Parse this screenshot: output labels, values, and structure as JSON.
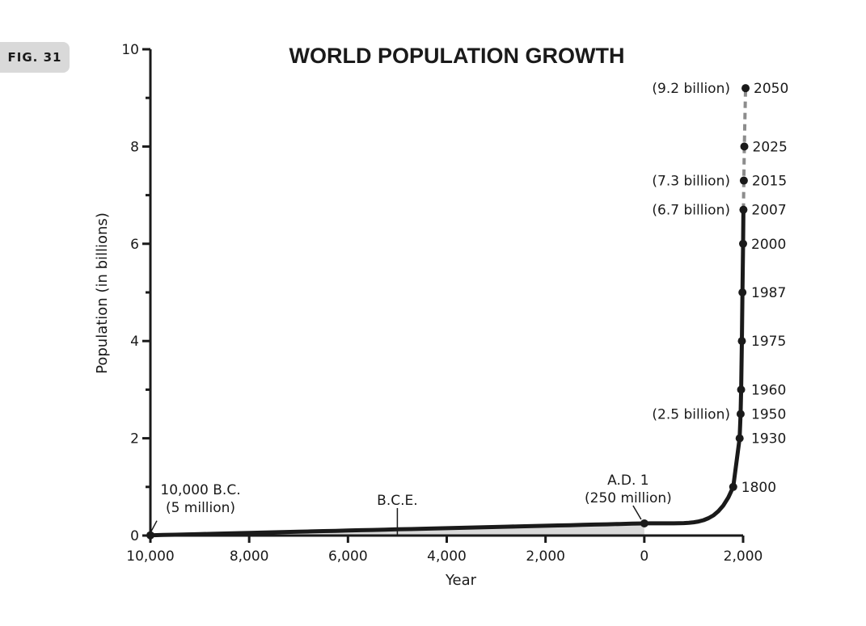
{
  "figure_label": "FIG. 31",
  "chart_data": {
    "type": "line",
    "title": "WORLD POPULATION GROWTH",
    "xlabel": "Year",
    "ylabel": "Population (in billions)",
    "xlim": [
      -10000,
      2000
    ],
    "ylim": [
      0,
      10
    ],
    "x_ticks": [
      -10000,
      -8000,
      -6000,
      -4000,
      -2000,
      0,
      2000
    ],
    "x_tick_labels": [
      "10,000",
      "8,000",
      "6,000",
      "4,000",
      "2,000",
      "0",
      "2,000"
    ],
    "y_ticks": [
      0,
      2,
      4,
      6,
      8,
      10
    ],
    "y_tick_labels": [
      "0",
      "2",
      "4",
      "6",
      "8",
      "10"
    ],
    "y_minor_ticks": [
      1,
      3,
      5,
      7,
      9
    ],
    "grid": false,
    "series": [
      {
        "style": "solid",
        "points": [
          {
            "x": -10000,
            "y": 0.005
          },
          {
            "x": 1,
            "y": 0.25
          },
          {
            "x": 1800,
            "y": 1.0
          },
          {
            "x": 1930,
            "y": 2.0
          },
          {
            "x": 1950,
            "y": 2.5
          },
          {
            "x": 1960,
            "y": 3.0
          },
          {
            "x": 1975,
            "y": 4.0
          },
          {
            "x": 1987,
            "y": 5.0
          },
          {
            "x": 2000,
            "y": 6.0
          },
          {
            "x": 2007,
            "y": 6.7
          }
        ]
      },
      {
        "style": "dashed",
        "points": [
          {
            "x": 2007,
            "y": 6.7
          },
          {
            "x": 2015,
            "y": 7.3
          },
          {
            "x": 2025,
            "y": 8.0
          },
          {
            "x": 2050,
            "y": 9.2
          }
        ]
      }
    ],
    "year_labels": [
      {
        "x": 1800,
        "y": 1.0,
        "label": "1800"
      },
      {
        "x": 1930,
        "y": 2.0,
        "label": "1930"
      },
      {
        "x": 1950,
        "y": 2.5,
        "label": "1950"
      },
      {
        "x": 1960,
        "y": 3.0,
        "label": "1960"
      },
      {
        "x": 1975,
        "y": 4.0,
        "label": "1975"
      },
      {
        "x": 1987,
        "y": 5.0,
        "label": "1987"
      },
      {
        "x": 2000,
        "y": 6.0,
        "label": "2000"
      },
      {
        "x": 2007,
        "y": 6.7,
        "label": "2007"
      },
      {
        "x": 2015,
        "y": 7.3,
        "label": "2015"
      },
      {
        "x": 2025,
        "y": 8.0,
        "label": "2025"
      },
      {
        "x": 2050,
        "y": 9.2,
        "label": "2050"
      }
    ],
    "population_labels": [
      {
        "y": 2.5,
        "label": "(2.5 billion)"
      },
      {
        "y": 6.7,
        "label": "(6.7 billion)"
      },
      {
        "y": 7.3,
        "label": "(7.3 billion)"
      },
      {
        "y": 9.2,
        "label": "(9.2 billion)"
      }
    ],
    "annotations": [
      {
        "x": -10000,
        "y": 0.005,
        "lines": [
          "10,000 B.C.",
          "(5 million)"
        ]
      },
      {
        "x": 1,
        "y": 0.25,
        "lines": [
          "A.D. 1",
          "(250 million)"
        ]
      },
      {
        "x": -5000,
        "y": 0.1,
        "lines": [
          "B.C.E."
        ]
      }
    ],
    "colors": {
      "line": "#1a1a1a",
      "projection": "#8c8c8c",
      "area_fill": "#d9d9d9",
      "badge": "#d9d9d9"
    }
  }
}
